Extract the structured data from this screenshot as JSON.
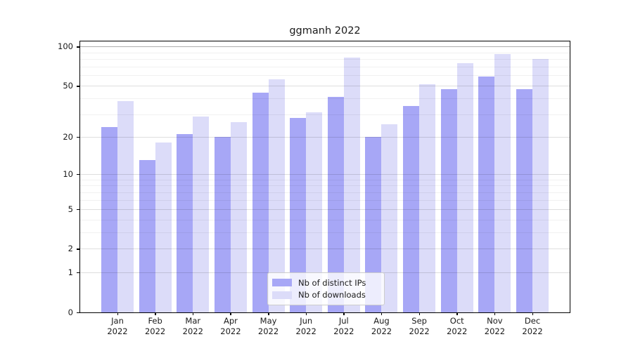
{
  "chart_data": {
    "type": "bar",
    "title": "ggmanh 2022",
    "categories": [
      "Jan 2022",
      "Feb 2022",
      "Mar 2022",
      "Apr 2022",
      "May 2022",
      "Jun 2022",
      "Jul 2022",
      "Aug 2022",
      "Sep 2022",
      "Oct 2022",
      "Nov 2022",
      "Dec 2022"
    ],
    "series": [
      {
        "name": "Nb of distinct IPs",
        "color": "#a7a7f6",
        "values": [
          24,
          13,
          21,
          20,
          44,
          28,
          41,
          20,
          35,
          47,
          59,
          47
        ]
      },
      {
        "name": "Nb of downloads",
        "color": "#dcdcf9",
        "values": [
          38,
          18,
          29,
          26,
          56,
          31,
          82,
          25,
          51,
          74,
          87,
          80
        ]
      }
    ],
    "y_axis": {
      "scale": "log1p",
      "tick_labels": [
        0,
        1,
        2,
        5,
        10,
        20,
        50,
        100
      ],
      "minor_gridlines": [
        3,
        4,
        6,
        7,
        8,
        9,
        30,
        40,
        60,
        70,
        80,
        90
      ],
      "ylim": [
        0,
        110
      ]
    },
    "grid": true,
    "legend_position": "lower center"
  }
}
